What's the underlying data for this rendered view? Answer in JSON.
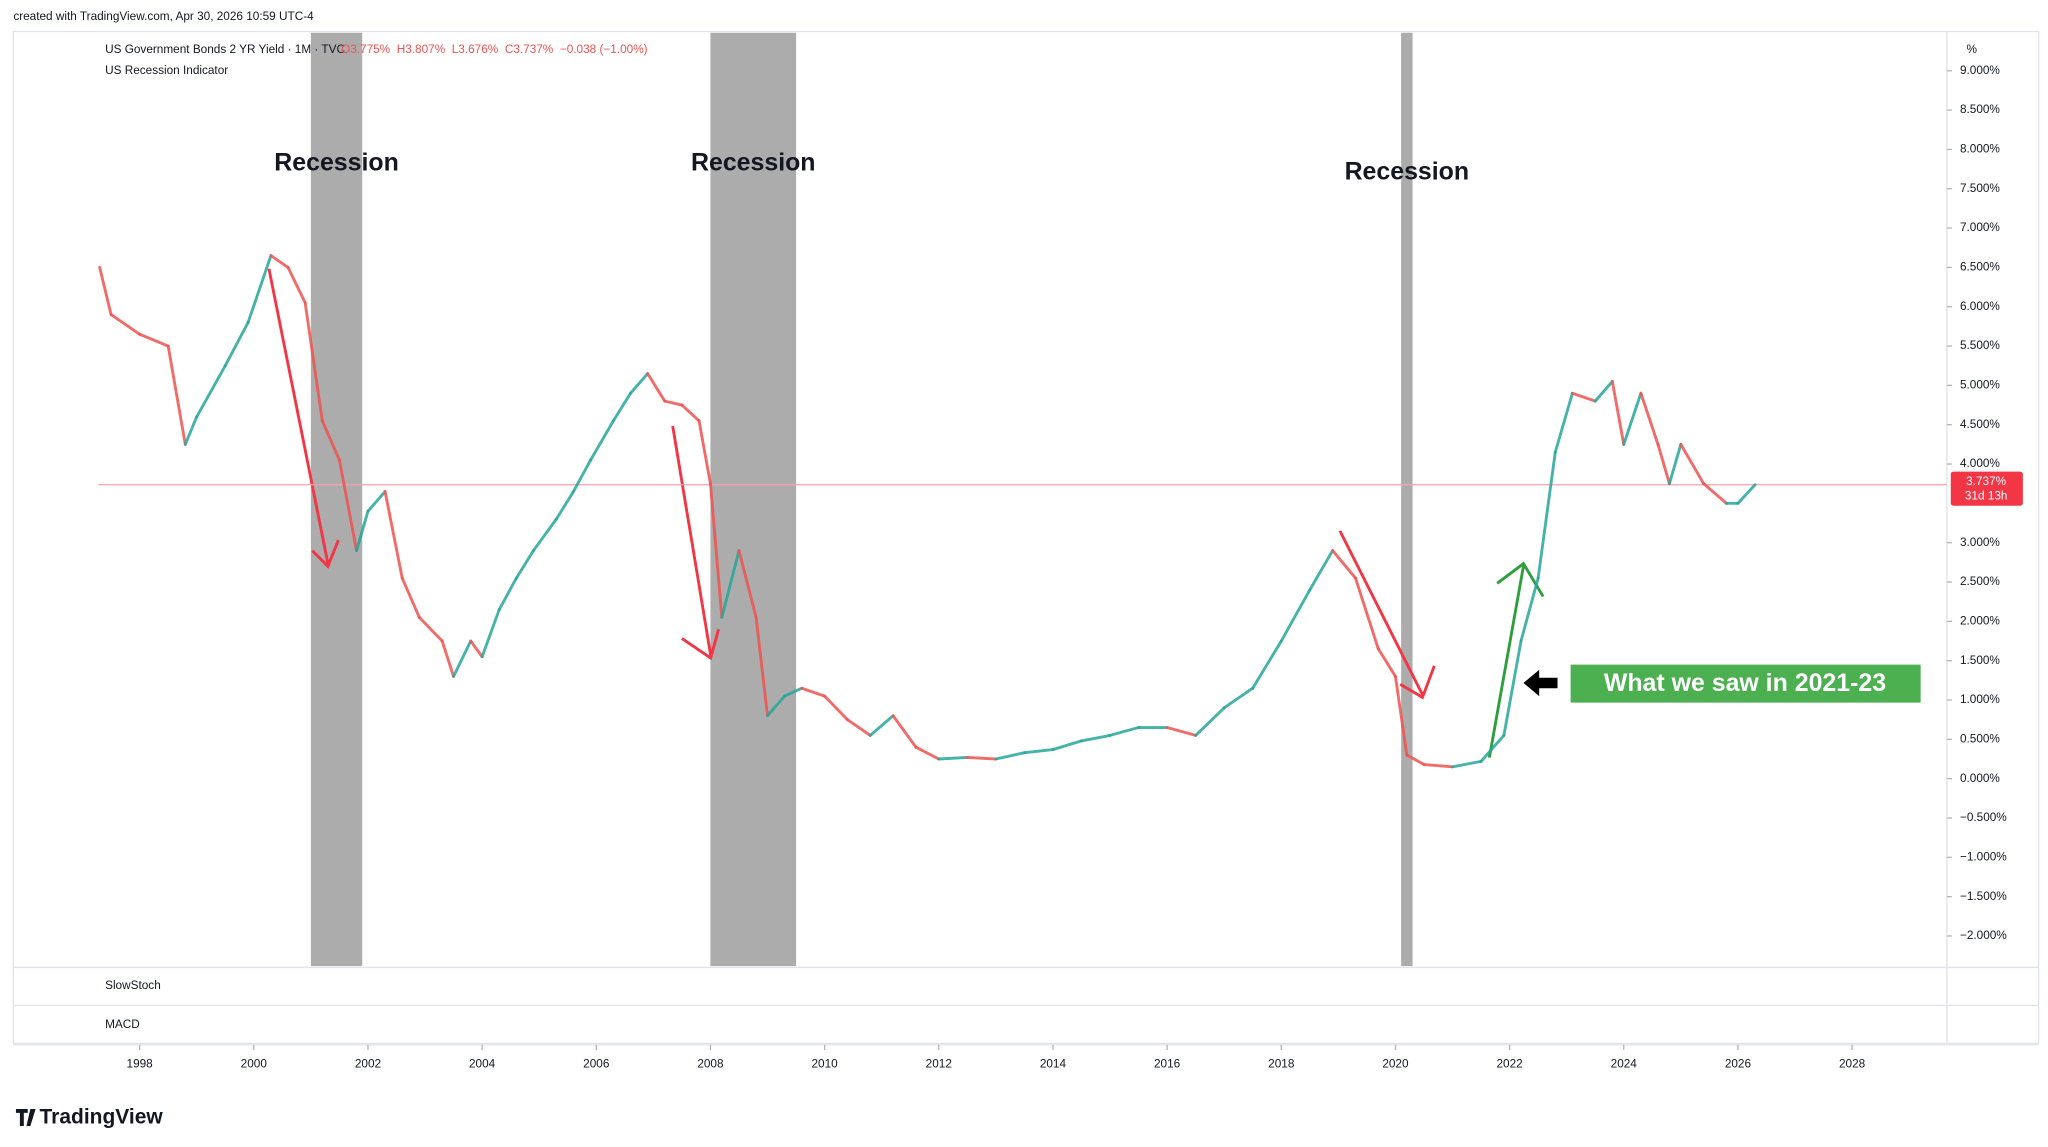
{
  "chart_data": {
    "type": "candle-line",
    "attribution": "created with TradingView.com, Apr 30, 2026 10:59 UTC-4",
    "series_title": "US Government Bonds 2 YR Yield · 1M · TVC",
    "legend_ohlc": [
      "O3.775%",
      "H3.807%",
      "L3.676%",
      "C3.737%",
      "−0.038 (−1.00%)"
    ],
    "indicator_title": "US Recession Indicator",
    "axis_unit": "%",
    "up_color": "#26a69a",
    "down_color": "#ef5350",
    "recession_color": "#9e9e9e",
    "x": [
      1997.3,
      1997.5,
      1998.0,
      1998.5,
      1998.8,
      1999.0,
      1999.5,
      1999.9,
      2000.3,
      2000.6,
      2000.9,
      2001.2,
      2001.5,
      2001.8,
      2002.0,
      2002.3,
      2002.6,
      2002.9,
      2003.3,
      2003.5,
      2003.8,
      2004.0,
      2004.3,
      2004.6,
      2004.9,
      2005.3,
      2005.6,
      2005.9,
      2006.3,
      2006.6,
      2006.9,
      2007.2,
      2007.5,
      2007.8,
      2008.0,
      2008.2,
      2008.5,
      2008.8,
      2009.0,
      2009.3,
      2009.6,
      2010.0,
      2010.4,
      2010.8,
      2011.2,
      2011.6,
      2012.0,
      2012.5,
      2013.0,
      2013.5,
      2014.0,
      2014.5,
      2015.0,
      2015.5,
      2016.0,
      2016.5,
      2017.0,
      2017.5,
      2018.0,
      2018.5,
      2018.9,
      2019.3,
      2019.7,
      2020.0,
      2020.2,
      2020.5,
      2021.0,
      2021.5,
      2021.9,
      2022.2,
      2022.5,
      2022.8,
      2023.1,
      2023.5,
      2023.8,
      2024.0,
      2024.3,
      2024.6,
      2024.8,
      2025.0,
      2025.4,
      2025.8,
      2026.0,
      2026.3
    ],
    "values": [
      6.5,
      5.9,
      5.65,
      5.5,
      4.25,
      4.6,
      5.25,
      5.8,
      6.65,
      6.5,
      6.05,
      4.55,
      4.05,
      2.9,
      3.4,
      3.65,
      2.55,
      2.05,
      1.75,
      1.3,
      1.75,
      1.55,
      2.15,
      2.55,
      2.9,
      3.3,
      3.65,
      4.05,
      4.55,
      4.9,
      5.15,
      4.8,
      4.75,
      4.55,
      3.75,
      2.05,
      2.9,
      2.05,
      0.8,
      1.05,
      1.15,
      1.05,
      0.75,
      0.55,
      0.8,
      0.4,
      0.25,
      0.27,
      0.25,
      0.33,
      0.37,
      0.48,
      0.55,
      0.65,
      0.65,
      0.55,
      0.9,
      1.15,
      1.75,
      2.4,
      2.9,
      2.55,
      1.65,
      1.3,
      0.3,
      0.18,
      0.15,
      0.22,
      0.55,
      1.75,
      2.55,
      4.15,
      4.9,
      4.8,
      5.05,
      4.25,
      4.9,
      4.25,
      3.75,
      4.25,
      3.75,
      3.5,
      3.5,
      3.737
    ],
    "last_price_label": "3.737%",
    "last_price_timer": "31d 13h",
    "recessions": [
      {
        "start": 2001.0,
        "end": 2001.9,
        "label": "Recession"
      },
      {
        "start": 2008.0,
        "end": 2009.5,
        "label": "Recession"
      },
      {
        "start": 2020.1,
        "end": 2020.3,
        "label": "Recession"
      }
    ],
    "annotation": "What we saw in 2021-23",
    "xlim": [
      1997.28,
      2029.66
    ],
    "xticks": [
      1998,
      2000,
      2002,
      2004,
      2006,
      2008,
      2010,
      2012,
      2014,
      2016,
      2018,
      2020,
      2022,
      2024,
      2026,
      2028
    ],
    "ylim": [
      -2.383,
      9.483
    ],
    "yticks": [
      {
        "value": 9,
        "label": "9.000%"
      },
      {
        "value": 8.5,
        "label": "8.500%"
      },
      {
        "value": 8,
        "label": "8.000%"
      },
      {
        "value": 7.5,
        "label": "7.500%"
      },
      {
        "value": 7,
        "label": "7.000%"
      },
      {
        "value": 6.5,
        "label": "6.500%"
      },
      {
        "value": 6,
        "label": "6.000%"
      },
      {
        "value": 5.5,
        "label": "5.500%"
      },
      {
        "value": 5,
        "label": "5.000%"
      },
      {
        "value": 4.5,
        "label": "4.500%"
      },
      {
        "value": 4,
        "label": "4.000%"
      },
      {
        "value": 3,
        "label": "3.000%"
      },
      {
        "value": 2.5,
        "label": "2.500%"
      },
      {
        "value": 2,
        "label": "2.000%"
      },
      {
        "value": 1.5,
        "label": "1.500%"
      },
      {
        "value": 1,
        "label": "1.000%"
      },
      {
        "value": 0.5,
        "label": "0.500%"
      },
      {
        "value": 0,
        "label": "0.000%"
      },
      {
        "value": -0.5,
        "label": "−0.500%"
      },
      {
        "value": -1,
        "label": "−1.000%"
      },
      {
        "value": -1.5,
        "label": "−1.500%"
      },
      {
        "value": -2,
        "label": "−2.000%"
      }
    ],
    "grid": false,
    "panes": [
      "SlowStoch",
      "MACD"
    ],
    "brand": "TradingView"
  }
}
